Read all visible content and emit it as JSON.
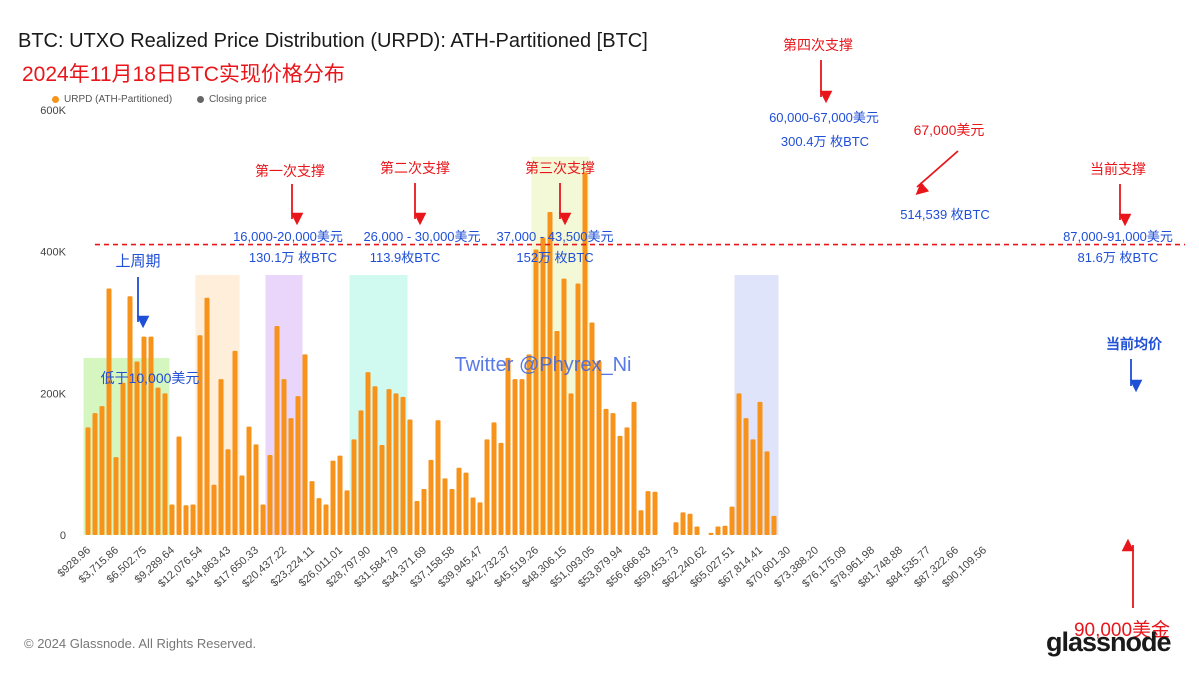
{
  "header": {
    "title": "BTC: UTXO Realized Price Distribution (URPD): ATH-Partitioned [BTC]",
    "subtitle": "2024年11月18日BTC实现价格分布"
  },
  "legend": [
    {
      "label": "URPD (ATH-Partitioned)",
      "color": "#f7931a"
    },
    {
      "label": "Closing price",
      "color": "#666666"
    }
  ],
  "footer": {
    "copyright": "© 2024 Glassnode. All Rights Reserved.",
    "logo": "glassnode"
  },
  "colors": {
    "bar": "#f7931a",
    "closing_bar": "#6b7280",
    "support_line": "#e8161b",
    "annotation_red": "#e8161b",
    "annotation_blue": "#1f4fd6"
  },
  "chart_data": {
    "type": "bar",
    "title": "BTC: UTXO Realized Price Distribution (URPD): ATH-Partitioned [BTC]",
    "xlabel": "",
    "ylabel": "",
    "ylim": [
      0,
      600000
    ],
    "yticks": [
      {
        "value": 0,
        "label": "0"
      },
      {
        "value": 200000,
        "label": "200K"
      },
      {
        "value": 400000,
        "label": "400K"
      },
      {
        "value": 600000,
        "label": "600K"
      }
    ],
    "x_tick_labels": [
      "$928.96",
      "$3,715.86",
      "$6,502.75",
      "$9,289.64",
      "$12,076.54",
      "$14,863.43",
      "$17,650.33",
      "$20,437.22",
      "$23,224.11",
      "$26,011.01",
      "$28,797.90",
      "$31,584.79",
      "$34,371.69",
      "$37,158.58",
      "$39,945.47",
      "$42,732.37",
      "$45,519.26",
      "$48,306.15",
      "$51,093.05",
      "$53,879.94",
      "$56,666.83",
      "$59,453.73",
      "$62,240.62",
      "$65,027.51",
      "$67,814.41",
      "$70,601.30",
      "$73,388.20",
      "$76,175.09",
      "$78,961.98",
      "$81,748.88",
      "$84,535.77",
      "$87,322.66",
      "$90,109.56"
    ],
    "bin_start": 928.96,
    "bin_width": 696.72,
    "closing_price_bin": 127,
    "grid": false,
    "legend_position": "top-left",
    "series": [
      {
        "name": "URPD (ATH-Partitioned)",
        "values": [
          152000,
          172000,
          182000,
          348000,
          110000,
          215000,
          337000,
          245000,
          280000,
          280000,
          208000,
          200000,
          43000,
          139000,
          42000,
          43000,
          282000,
          335000,
          71000,
          220000,
          121000,
          260000,
          84000,
          153000,
          128000,
          43000,
          113000,
          295000,
          220000,
          165000,
          196000,
          255000,
          76000,
          52000,
          43000,
          105000,
          112000,
          63000,
          135000,
          176000,
          230000,
          210000,
          127000,
          206000,
          200000,
          195000,
          163000,
          48000,
          65000,
          106000,
          162000,
          80000,
          65000,
          95000,
          88000,
          53000,
          46000,
          135000,
          159000,
          130000,
          250000,
          220000,
          220000,
          255000,
          403000,
          420000,
          456000,
          288000,
          362000,
          200000,
          355000,
          512000,
          300000,
          246000,
          178000,
          172000,
          140000,
          152000,
          188000,
          35000,
          62000,
          61000,
          0,
          0,
          18000,
          32000,
          30000,
          12000,
          0,
          3000,
          12000,
          13000,
          40000,
          200000,
          165000,
          135000,
          188000,
          118000,
          27000
        ]
      }
    ],
    "support_line_value": 410000,
    "zones": [
      {
        "from_bin": 0,
        "to_bin": 11,
        "top": 250000,
        "color": "#b3f08a"
      },
      {
        "from_bin": 16,
        "to_bin": 21,
        "top": 367000,
        "color": "#fde0bc"
      },
      {
        "from_bin": 26,
        "to_bin": 30,
        "top": 367000,
        "color": "#d8b5f5"
      },
      {
        "from_bin": 38,
        "to_bin": 45,
        "top": 367000,
        "color": "#aaf5e4"
      },
      {
        "from_bin": 64,
        "to_bin": 71,
        "top": 534000,
        "color": "#e9f3b5"
      },
      {
        "from_bin": 93,
        "to_bin": 98,
        "top": 367000,
        "color": "#c5cdf8"
      }
    ],
    "annotations": [
      {
        "text": "第一次支撑",
        "color": "red",
        "anchor": "zone-1",
        "arrow": true
      },
      {
        "text": "16,000-20,000美元",
        "color": "blue"
      },
      {
        "text": "130.1万 枚BTC",
        "color": "blue"
      },
      {
        "text": "第二次支撑",
        "color": "red",
        "arrow": true
      },
      {
        "text": "26,000 - 30,000美元",
        "color": "blue"
      },
      {
        "text": "113.9枚BTC",
        "color": "blue"
      },
      {
        "text": "第三次支撑",
        "color": "red",
        "arrow": true
      },
      {
        "text": "37,000 - 43,500美元",
        "color": "blue"
      },
      {
        "text": "152万 枚BTC",
        "color": "blue"
      },
      {
        "text": "第四次支撑",
        "color": "red",
        "arrow": true
      },
      {
        "text": "60,000-67,000美元",
        "color": "blue"
      },
      {
        "text": "300.4万 枚BTC",
        "color": "blue"
      },
      {
        "text": "67,000美元",
        "color": "red",
        "arrow": true
      },
      {
        "text": "514,539 枚BTC",
        "color": "blue"
      },
      {
        "text": "当前支撑",
        "color": "red",
        "arrow": true
      },
      {
        "text": "87,000-91,000美元",
        "color": "blue"
      },
      {
        "text": "81.6万 枚BTC",
        "color": "blue"
      },
      {
        "text": "上周期",
        "color": "blue",
        "arrow": true
      },
      {
        "text": "低于10,000美元",
        "color": "blue"
      },
      {
        "text": "当前均价",
        "color": "blue",
        "arrow": true
      },
      {
        "text": "90,000美金",
        "color": "red",
        "arrow": true
      },
      {
        "text": "Twitter @Phyrex_Ni",
        "color": "blue",
        "watermark": true
      }
    ]
  }
}
